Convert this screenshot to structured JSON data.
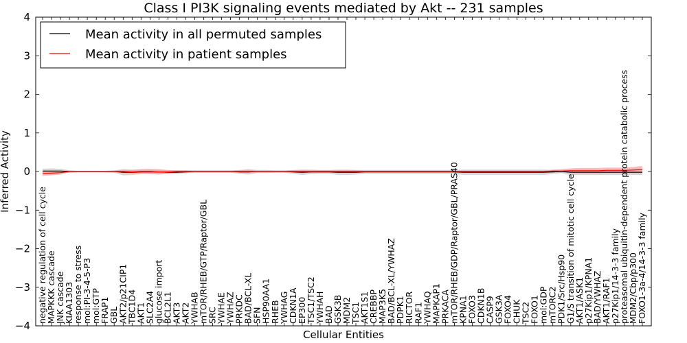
{
  "chart_data": {
    "type": "line",
    "title": "Class I PI3K signaling events mediated by Akt -- 231 samples",
    "xlabel": "Cellular Entities",
    "ylabel": "Inferred Activity",
    "ylim": [
      -4,
      4
    ],
    "yticks": [
      -4,
      -3,
      -2,
      -1,
      0,
      1,
      2,
      3,
      4
    ],
    "legend": {
      "placement": "top-left",
      "entries": [
        {
          "name": "Mean activity in all permuted samples",
          "color": "#000000"
        },
        {
          "name": "Mean activity in patient samples",
          "color": "#ff0000"
        }
      ]
    },
    "categories": [
      "negative regulation of cell cycle",
      "MAPKKK cascade",
      "JNK cascade",
      "KIAA1303",
      "response to stress",
      "mol:PI-3-4-5-P3",
      "mol:GTP",
      "FRAP1",
      "GBL",
      "AKT2/p21CIP1",
      "TBC1D4",
      "AKT1",
      "SLC2A4",
      "glucose import",
      "BCL2L1",
      "AKT3",
      "AKT2",
      "YWHAB",
      "mTOR/RHEB/GTP/Raptor/GBL",
      "SRC",
      "YWHAE",
      "YWHAZ",
      "PRKDC",
      "BAD/BCL-XL",
      "SFN",
      "HSP90AA1",
      "RHEB",
      "YWHAG",
      "CDKN1A",
      "EP300",
      "TSC1/TSC2",
      "YWHAH",
      "BAD",
      "GSK3B",
      "MDM2",
      "TSC1",
      "AKT1S1",
      "CREBBP",
      "MAP3K5",
      "BAD/BCL-XL/YWHAZ",
      "PDPK1",
      "RICTOR",
      "RAF1",
      "YWHAQ",
      "MAPKAP1",
      "PRKACA",
      "mTOR/RHEB/GDP/Raptor/GBL/PRAS40",
      "KPNA1",
      "FOXO3",
      "CDKN1B",
      "CASP9",
      "GSK3A",
      "FOXO4",
      "CHUK",
      "TSC2",
      "FOXO1",
      "mol:GDP",
      "mTORC2",
      "PDK1/Src/Hsp90",
      "G1/S transition of mitotic cell cycle",
      "AKT1/ASK1",
      "p27Kip1/KPNA1",
      "BAD/YWHAZ",
      "AKT1/RAF1",
      "p27Kip1/14-3-3 family",
      "proteasomal ubiquitin-dependent protein catabolic process",
      "MDM2/Cbp/p300",
      "FOXO1-3a-4/14-3-3 family"
    ],
    "series": [
      {
        "name": "Mean activity in all permuted samples",
        "color": "#000000",
        "band_color": "#c8c8c8",
        "values": [
          0.01,
          0.01,
          0.01,
          0.0,
          0.0,
          0.0,
          0.0,
          0.0,
          0.0,
          -0.02,
          -0.02,
          -0.01,
          -0.01,
          -0.01,
          -0.02,
          -0.02,
          -0.01,
          0.0,
          0.0,
          0.0,
          0.0,
          0.0,
          -0.01,
          -0.01,
          0.0,
          0.0,
          0.0,
          0.0,
          -0.01,
          -0.02,
          -0.01,
          -0.01,
          -0.01,
          -0.02,
          -0.02,
          -0.02,
          -0.01,
          -0.01,
          -0.01,
          -0.01,
          -0.01,
          -0.01,
          -0.01,
          -0.01,
          -0.01,
          -0.01,
          -0.01,
          -0.02,
          -0.02,
          -0.02,
          -0.02,
          -0.02,
          -0.02,
          -0.02,
          -0.02,
          -0.02,
          -0.02,
          -0.01,
          0.0,
          -0.02,
          -0.02,
          -0.02,
          -0.02,
          -0.02,
          -0.02,
          -0.02,
          -0.02,
          -0.02
        ],
        "band": [
          0.06,
          0.07,
          0.06,
          0.03,
          0.02,
          0.02,
          0.02,
          0.02,
          0.03,
          0.08,
          0.07,
          0.06,
          0.05,
          0.05,
          0.05,
          0.05,
          0.04,
          0.03,
          0.03,
          0.03,
          0.03,
          0.03,
          0.05,
          0.07,
          0.04,
          0.04,
          0.03,
          0.03,
          0.05,
          0.07,
          0.06,
          0.05,
          0.05,
          0.07,
          0.07,
          0.06,
          0.05,
          0.05,
          0.05,
          0.05,
          0.05,
          0.05,
          0.05,
          0.05,
          0.05,
          0.05,
          0.05,
          0.07,
          0.07,
          0.07,
          0.07,
          0.07,
          0.07,
          0.07,
          0.07,
          0.07,
          0.07,
          0.05,
          0.04,
          0.07,
          0.07,
          0.07,
          0.07,
          0.07,
          0.07,
          0.07,
          0.07,
          0.07
        ]
      },
      {
        "name": "Mean activity in patient samples",
        "color": "#ff0000",
        "band_color": "#f4a0a0",
        "values": [
          -0.05,
          -0.04,
          -0.03,
          0.0,
          0.0,
          0.0,
          0.0,
          0.0,
          0.0,
          0.0,
          -0.01,
          0.0,
          0.0,
          -0.01,
          -0.01,
          0.0,
          0.0,
          0.0,
          0.0,
          0.0,
          0.0,
          0.0,
          0.0,
          0.0,
          0.0,
          0.0,
          0.0,
          0.0,
          0.0,
          0.0,
          0.0,
          0.0,
          0.0,
          0.0,
          0.0,
          0.0,
          0.0,
          0.0,
          0.0,
          0.0,
          0.0,
          0.0,
          0.0,
          0.0,
          0.0,
          0.0,
          0.0,
          0.0,
          0.0,
          0.0,
          0.0,
          0.0,
          0.0,
          0.0,
          0.0,
          0.0,
          0.0,
          0.01,
          0.01,
          0.02,
          0.02,
          0.02,
          0.02,
          0.03,
          0.03,
          0.03,
          0.04,
          0.05
        ],
        "band": [
          0.06,
          0.06,
          0.05,
          0.02,
          0.01,
          0.01,
          0.01,
          0.01,
          0.02,
          0.04,
          0.05,
          0.06,
          0.07,
          0.07,
          0.05,
          0.03,
          0.03,
          0.02,
          0.02,
          0.02,
          0.02,
          0.02,
          0.03,
          0.04,
          0.02,
          0.02,
          0.02,
          0.02,
          0.03,
          0.04,
          0.03,
          0.03,
          0.03,
          0.03,
          0.03,
          0.03,
          0.02,
          0.02,
          0.02,
          0.02,
          0.02,
          0.02,
          0.02,
          0.02,
          0.02,
          0.02,
          0.02,
          0.02,
          0.02,
          0.02,
          0.02,
          0.02,
          0.02,
          0.02,
          0.02,
          0.02,
          0.02,
          0.04,
          0.05,
          0.06,
          0.07,
          0.07,
          0.07,
          0.07,
          0.07,
          0.07,
          0.08,
          0.09
        ]
      }
    ]
  }
}
